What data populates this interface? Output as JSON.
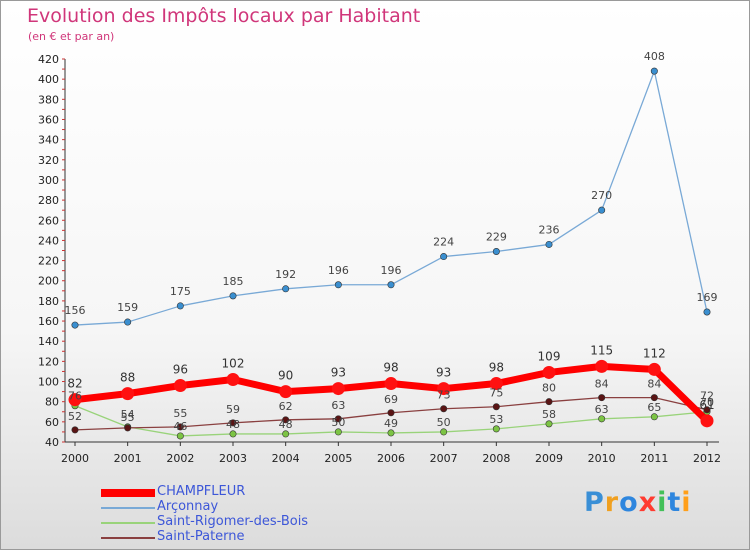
{
  "title": "Evolution des Impôts locaux par Habitant",
  "subtitle": "(en € et par an)",
  "brand": "Proxiti",
  "brand_colors": [
    "#3a8fd6",
    "#f0a020",
    "#2e86de",
    "#ff3b30",
    "#43c059",
    "#2e86de",
    "#ff9f1a"
  ],
  "colors": {
    "title": "#d0367a",
    "legend_text": "#3d57d8",
    "axis": "#333333",
    "tick_marks": "#cc3333"
  },
  "chart_data": {
    "type": "line",
    "title": "Evolution des Impôts locaux par Habitant",
    "subtitle": "(en € et par an)",
    "xlabel": "",
    "ylabel": "",
    "x": [
      "2000",
      "2001",
      "2002",
      "2003",
      "2004",
      "2005",
      "2006",
      "2007",
      "2008",
      "2009",
      "2010",
      "2011",
      "2012"
    ],
    "ylim": [
      40,
      420
    ],
    "yticks": [
      40,
      60,
      80,
      100,
      120,
      140,
      160,
      180,
      200,
      220,
      240,
      260,
      280,
      300,
      320,
      340,
      360,
      380,
      400,
      420
    ],
    "grid": false,
    "legend_position": "bottom-left",
    "series": [
      {
        "name": "Arçonnay",
        "color": "#79a9d6",
        "marker": "#3a8fd0",
        "width": 1.3,
        "values": [
          156,
          159,
          175,
          185,
          192,
          196,
          196,
          224,
          229,
          236,
          270,
          408,
          169
        ]
      },
      {
        "name": "Saint-Rigomer-des-Bois",
        "color": "#99d37a",
        "marker": "#7cc444",
        "width": 1.3,
        "values": [
          76,
          55,
          46,
          48,
          48,
          50,
          49,
          50,
          53,
          58,
          63,
          65,
          70
        ]
      },
      {
        "name": "Saint-Paterne",
        "color": "#8a4040",
        "marker": "#5a1414",
        "width": 1.3,
        "values": [
          52,
          54,
          55,
          59,
          62,
          63,
          69,
          73,
          75,
          80,
          84,
          84,
          72
        ]
      },
      {
        "name": "CHAMPFLEUR",
        "color": "#ff0000",
        "marker": "#ff1111",
        "width": 7,
        "values": [
          82,
          88,
          96,
          102,
          90,
          93,
          98,
          93,
          98,
          109,
          115,
          112,
          61
        ]
      }
    ],
    "legend_order": [
      "CHAMPFLEUR",
      "Arçonnay",
      "Saint-Rigomer-des-Bois",
      "Saint-Paterne"
    ]
  }
}
